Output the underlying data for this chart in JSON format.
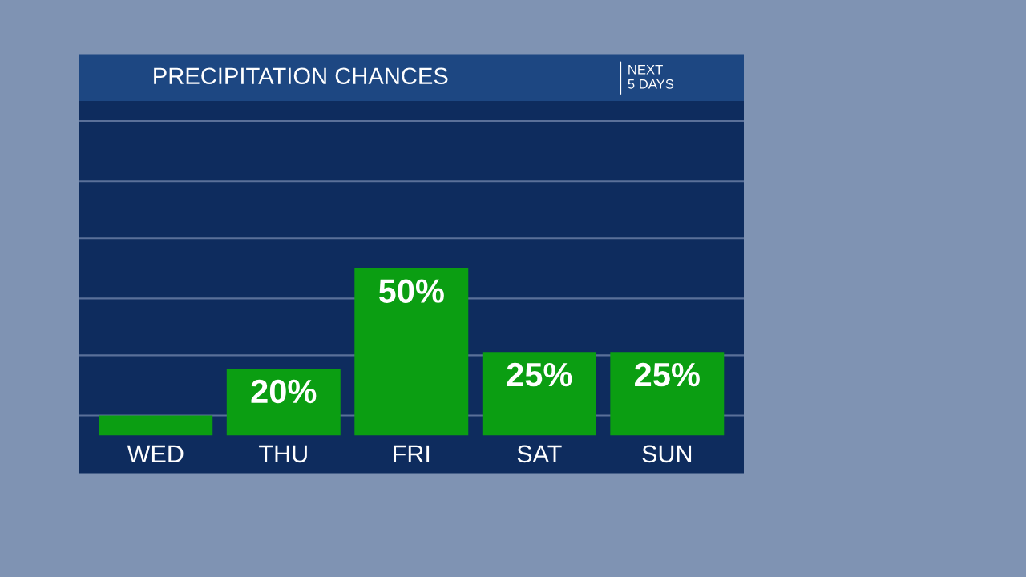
{
  "chart_data": {
    "type": "bar",
    "title": "PRECIPITATION CHANCES",
    "subtitle": "NEXT\n5 DAYS",
    "categories": [
      "WED",
      "THU",
      "FRI",
      "SAT",
      "SUN"
    ],
    "values": [
      6,
      20,
      50,
      25,
      25
    ],
    "value_labels": [
      null,
      "20%",
      "50%",
      "25%",
      "25%"
    ],
    "color": "#0b9e12",
    "ylim": [
      0,
      100
    ],
    "yticks": [
      {
        "value": 6,
        "label": null
      },
      {
        "value": 24,
        "label": null
      },
      {
        "value": 41,
        "label": null
      },
      {
        "value": 59,
        "label": null
      },
      {
        "value": 76,
        "label": null
      },
      {
        "value": 94,
        "label": null
      }
    ],
    "grid": "y",
    "tick_labels": "x"
  }
}
